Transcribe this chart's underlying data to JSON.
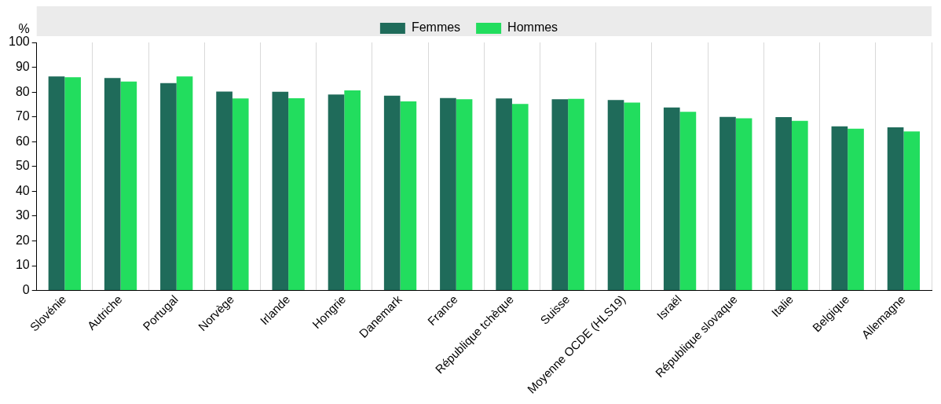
{
  "chart_data": {
    "type": "bar",
    "ylabel": "%",
    "categories": [
      "Slovénie",
      "Autriche",
      "Portugal",
      "Norvège",
      "Irlande",
      "Hongrie",
      "Danemark",
      "France",
      "République tchèque",
      "Suisse",
      "Moyenne OCDE (HLS19)",
      "Israël",
      "République slovaque",
      "Italie",
      "Belgique",
      "Allemagne"
    ],
    "series": [
      {
        "name": "Femmes",
        "color": "#1f6b5a",
        "values": [
          86.3,
          85.7,
          83.6,
          80.2,
          80.1,
          79.0,
          78.5,
          77.6,
          77.4,
          77.1,
          76.8,
          73.8,
          70.0,
          69.9,
          66.2,
          65.8
        ]
      },
      {
        "name": "Hommes",
        "color": "#22dd5e",
        "values": [
          86.0,
          84.2,
          86.3,
          77.4,
          77.5,
          80.7,
          76.2,
          77.1,
          75.2,
          77.3,
          75.8,
          72.0,
          69.4,
          68.4,
          65.2,
          64.1
        ]
      }
    ],
    "ylim": [
      0,
      100
    ],
    "yticks": [
      0,
      10,
      20,
      30,
      40,
      50,
      60,
      70,
      80,
      90,
      100
    ],
    "grid": "x",
    "legend": "top"
  }
}
